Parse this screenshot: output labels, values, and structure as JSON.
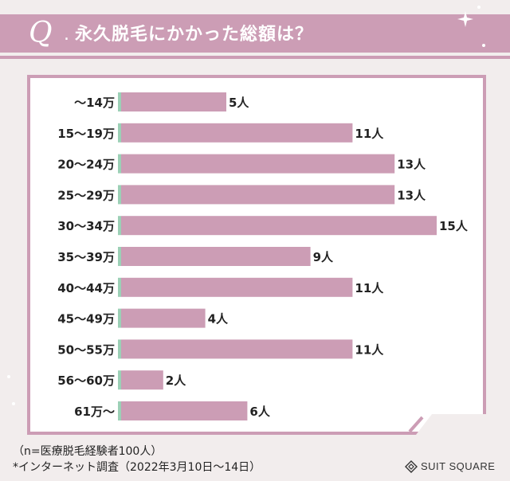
{
  "header": {
    "q_mark": "Q",
    "title": "永久脱毛にかかった総額は？"
  },
  "chart_data": {
    "type": "bar",
    "orientation": "horizontal",
    "categories": [
      "〜14万",
      "15〜19万",
      "20〜24万",
      "25〜29万",
      "30〜34万",
      "35〜39万",
      "40〜44万",
      "45〜49万",
      "50〜55万",
      "56〜60万",
      "61万〜"
    ],
    "values": [
      5,
      11,
      13,
      13,
      15,
      9,
      11,
      4,
      11,
      2,
      6
    ],
    "value_labels": [
      "5人",
      "11人",
      "13人",
      "13人",
      "15人",
      "9人",
      "11人",
      "4人",
      "11人",
      "2人",
      "6人"
    ],
    "bar_color": "#cc9db5",
    "axis_color": "#9cd0b6",
    "grid": false,
    "legend": "none"
  },
  "footer": {
    "note": "（n=医療脱毛経験者100人）",
    "survey": "*インターネット調査（2022年3月10日〜14日）"
  },
  "logo": {
    "text": "SUIT SQUARE",
    "icon": "suit-square-logo-icon"
  }
}
